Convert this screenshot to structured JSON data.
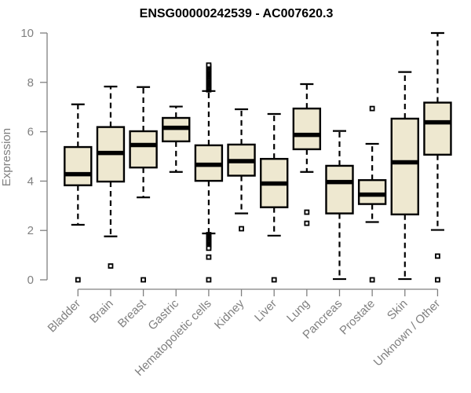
{
  "chart_data": {
    "type": "boxplot",
    "title": "ENSG00000242539 - AC007620.3",
    "xlabel": "",
    "ylabel": "Expression",
    "ylim": [
      0,
      10
    ],
    "yticks": [
      "0",
      "2",
      "4",
      "6",
      "8",
      "10"
    ],
    "grid": false,
    "colors": {
      "box_fill": "#EEE8D0",
      "box_stroke": "#000000",
      "axis": "#808080",
      "text": "#808080",
      "title": "#000000"
    },
    "categories": [
      "Bladder",
      "Brain",
      "Breast",
      "Gastric",
      "Hematopoietic cells",
      "Kidney",
      "Liver",
      "Lung",
      "Pancreas",
      "Prostate",
      "Skin",
      "Unknown / Other"
    ],
    "boxes": [
      {
        "name": "Bladder",
        "whisker_low": 2.23,
        "q1": 3.83,
        "median": 4.28,
        "q3": 5.38,
        "whisker_high": 7.11,
        "outliers": [
          0
        ]
      },
      {
        "name": "Brain",
        "whisker_low": 1.76,
        "q1": 3.98,
        "median": 5.14,
        "q3": 6.19,
        "whisker_high": 7.83,
        "outliers": [
          0.56
        ]
      },
      {
        "name": "Breast",
        "whisker_low": 3.34,
        "q1": 4.55,
        "median": 5.46,
        "q3": 6.02,
        "whisker_high": 7.81,
        "outliers": [
          0
        ]
      },
      {
        "name": "Gastric",
        "whisker_low": 4.37,
        "q1": 5.61,
        "median": 6.16,
        "q3": 6.56,
        "whisker_high": 7.02,
        "outliers": []
      },
      {
        "name": "Hematopoietic cells",
        "whisker_low": 1.88,
        "q1": 4.01,
        "median": 4.66,
        "q3": 5.45,
        "whisker_high": 7.65,
        "outliers": [
          7.7,
          7.75,
          7.8,
          7.85,
          7.9,
          7.95,
          8.0,
          8.05,
          8.1,
          8.15,
          8.2,
          8.25,
          8.3,
          8.35,
          8.4,
          8.45,
          8.5,
          8.55,
          8.6,
          8.65,
          8.7,
          1.83,
          1.78,
          1.73,
          1.68,
          1.63,
          1.58,
          1.53,
          1.48,
          1.43,
          1.38,
          1.33,
          1.28,
          0.92,
          0
        ]
      },
      {
        "name": "Kidney",
        "whisker_low": 2.69,
        "q1": 4.22,
        "median": 4.81,
        "q3": 5.48,
        "whisker_high": 6.91,
        "outliers": [
          2.07
        ]
      },
      {
        "name": "Liver",
        "whisker_low": 1.79,
        "q1": 2.94,
        "median": 3.9,
        "q3": 4.9,
        "whisker_high": 6.72,
        "outliers": [
          0
        ]
      },
      {
        "name": "Lung",
        "whisker_low": 4.37,
        "q1": 5.29,
        "median": 5.87,
        "q3": 6.94,
        "whisker_high": 7.93,
        "outliers": [
          2.74,
          2.29
        ]
      },
      {
        "name": "Pancreas",
        "whisker_low": 0.03,
        "q1": 2.69,
        "median": 3.96,
        "q3": 4.62,
        "whisker_high": 6.03,
        "outliers": []
      },
      {
        "name": "Prostate",
        "whisker_low": 2.34,
        "q1": 3.07,
        "median": 3.45,
        "q3": 4.04,
        "whisker_high": 5.51,
        "outliers": [
          6.94,
          0
        ]
      },
      {
        "name": "Skin",
        "whisker_low": 0.03,
        "q1": 2.65,
        "median": 4.76,
        "q3": 6.53,
        "whisker_high": 8.42,
        "outliers": []
      },
      {
        "name": "Unknown / Other",
        "whisker_low": 2.02,
        "q1": 5.07,
        "median": 6.38,
        "q3": 7.18,
        "whisker_high": 10.0,
        "outliers": [
          0.96,
          0
        ]
      }
    ]
  }
}
